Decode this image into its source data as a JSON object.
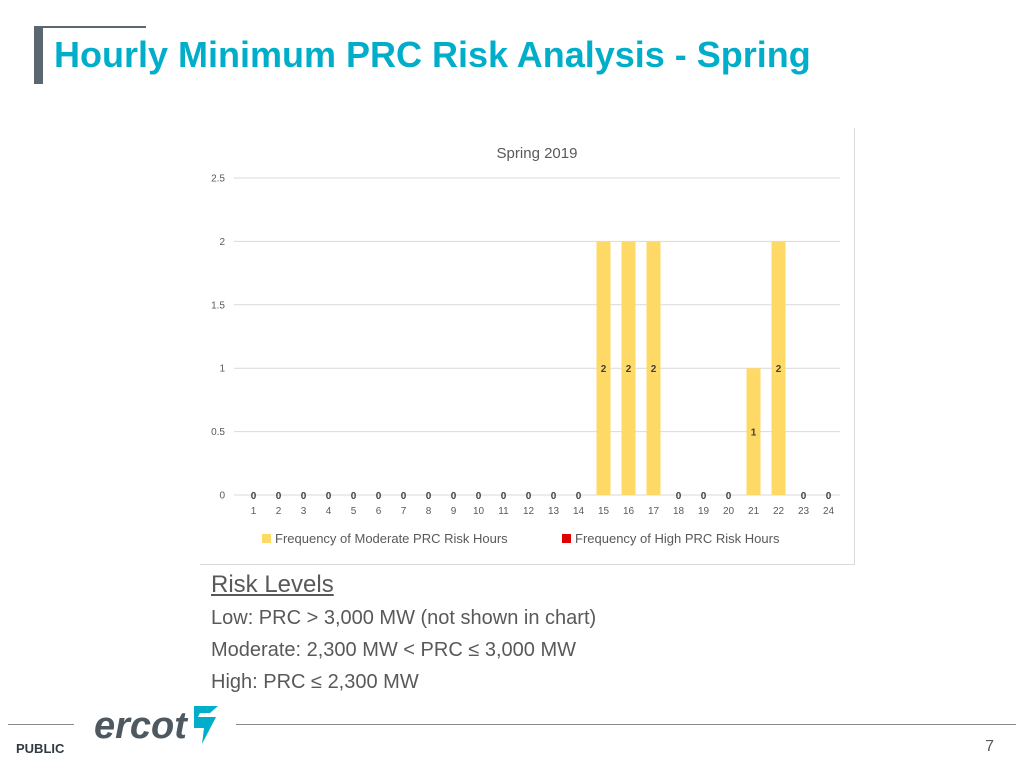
{
  "slide": {
    "title": "Hourly Minimum PRC Risk Analysis - Spring",
    "footer_label": "PUBLIC",
    "page_number": "7",
    "logo_text": "ercot"
  },
  "risk_levels": {
    "heading": "Risk Levels",
    "lines": [
      "Low: PRC > 3,000 MW (not shown in chart)",
      "Moderate: 2,300 MW < PRC ≤ 3,000 MW",
      "High: PRC ≤ 2,300 MW"
    ]
  },
  "chart_data": {
    "type": "bar",
    "title": "Spring 2019",
    "xlabel": "",
    "ylabel": "",
    "categories": [
      "1",
      "2",
      "3",
      "4",
      "5",
      "6",
      "7",
      "8",
      "9",
      "10",
      "11",
      "12",
      "13",
      "14",
      "15",
      "16",
      "17",
      "18",
      "19",
      "20",
      "21",
      "22",
      "23",
      "24"
    ],
    "series": [
      {
        "name": "Frequency of Moderate PRC Risk Hours",
        "color": "#ffd966",
        "values": [
          0,
          0,
          0,
          0,
          0,
          0,
          0,
          0,
          0,
          0,
          0,
          0,
          0,
          0,
          2,
          2,
          2,
          0,
          0,
          0,
          1,
          2,
          0,
          0
        ]
      },
      {
        "name": "Frequency of High PRC Risk Hours",
        "color": "#e00000",
        "values": [
          0,
          0,
          0,
          0,
          0,
          0,
          0,
          0,
          0,
          0,
          0,
          0,
          0,
          0,
          0,
          0,
          0,
          0,
          0,
          0,
          0,
          0,
          0,
          0
        ]
      }
    ],
    "ylim": [
      0,
      2.5
    ],
    "yticks": [
      "0",
      "0.5",
      "1",
      "1.5",
      "2",
      "2.5"
    ],
    "ytick_values": [
      0,
      0.5,
      1,
      1.5,
      2,
      2.5
    ],
    "grid": true,
    "legend_position": "bottom"
  }
}
